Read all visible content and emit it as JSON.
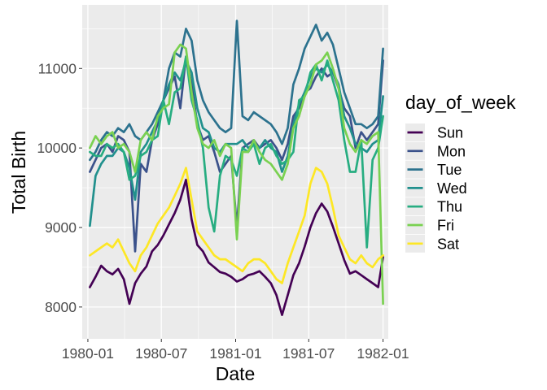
{
  "chart_data": {
    "type": "line",
    "xlabel": "Date",
    "ylabel": "Total Birth",
    "x_ticks": [
      "1980-01",
      "1980-07",
      "1981-01",
      "1981-07",
      "1982-01"
    ],
    "y_ticks": [
      "8000",
      "9000",
      "10000",
      "11000"
    ],
    "xlim": [
      "1979-12-18",
      "1982-01-14"
    ],
    "ylim": [
      7600,
      11800
    ],
    "grid": true,
    "legend": {
      "title": "day_of_week",
      "position": "right"
    },
    "dates": [
      "1980-01-06",
      "1980-01-20",
      "1980-02-03",
      "1980-02-17",
      "1980-03-02",
      "1980-03-16",
      "1980-03-30",
      "1980-04-13",
      "1980-04-27",
      "1980-05-11",
      "1980-05-25",
      "1980-06-08",
      "1980-06-22",
      "1980-07-06",
      "1980-07-20",
      "1980-08-03",
      "1980-08-17",
      "1980-08-31",
      "1980-09-14",
      "1980-09-28",
      "1980-10-12",
      "1980-10-26",
      "1980-11-09",
      "1980-11-23",
      "1980-12-07",
      "1980-12-21",
      "1981-01-04",
      "1981-01-18",
      "1981-02-01",
      "1981-02-15",
      "1981-03-01",
      "1981-03-15",
      "1981-03-29",
      "1981-04-12",
      "1981-04-26",
      "1981-05-10",
      "1981-05-24",
      "1981-06-07",
      "1981-06-21",
      "1981-07-05",
      "1981-07-19",
      "1981-08-02",
      "1981-08-16",
      "1981-08-30",
      "1981-09-13",
      "1981-09-27",
      "1981-10-11",
      "1981-10-25",
      "1981-11-08",
      "1981-11-22",
      "1981-12-06",
      "1981-12-20",
      "1982-01-01"
    ],
    "series": [
      {
        "name": "Sun",
        "color": "#440154",
        "values": [
          8250,
          8380,
          8520,
          8450,
          8410,
          8480,
          8350,
          8040,
          8300,
          8420,
          8510,
          8700,
          8780,
          8900,
          9040,
          9180,
          9350,
          9600,
          9100,
          8780,
          8700,
          8560,
          8500,
          8440,
          8420,
          8380,
          8320,
          8350,
          8400,
          8420,
          8450,
          8380,
          8300,
          8150,
          7900,
          8150,
          8400,
          8550,
          8760,
          9000,
          9180,
          9300,
          9200,
          9010,
          8800,
          8590,
          8420,
          8450,
          8400,
          8350,
          8300,
          8250,
          8630
        ]
      },
      {
        "name": "Mon",
        "color": "#3b528b",
        "values": [
          9700,
          9850,
          10000,
          10050,
          9950,
          10150,
          10100,
          9950,
          8700,
          9800,
          9700,
          10100,
          10300,
          10600,
          10750,
          10900,
          10500,
          11150,
          10800,
          10300,
          10100,
          10150,
          9950,
          9700,
          9800,
          9900,
          9000,
          10000,
          10050,
          10100,
          10000,
          10050,
          10100,
          10000,
          9850,
          10050,
          10400,
          10500,
          10700,
          10750,
          10900,
          11000,
          10900,
          10950,
          10750,
          10500,
          10400,
          10000,
          10200,
          10100,
          10200,
          10300,
          11100
        ]
      },
      {
        "name": "Tue",
        "color": "#2c728e",
        "values": [
          9850,
          9950,
          10100,
          10200,
          10150,
          10250,
          10200,
          10300,
          10150,
          10100,
          10200,
          10300,
          10450,
          10600,
          11000,
          11200,
          11150,
          11500,
          11350,
          10850,
          10600,
          10450,
          10350,
          10250,
          10200,
          10250,
          11600,
          10400,
          10350,
          10450,
          10400,
          10350,
          10300,
          10200,
          10050,
          10250,
          10800,
          11000,
          11250,
          11400,
          11550,
          11350,
          11450,
          11300,
          11000,
          10700,
          10500,
          10300,
          10300,
          10250,
          10300,
          10400,
          11250
        ]
      },
      {
        "name": "Wed",
        "color": "#21908d",
        "values": [
          9020,
          9650,
          9800,
          9900,
          9900,
          10000,
          9950,
          9750,
          9350,
          9950,
          10050,
          10200,
          10350,
          10600,
          10800,
          10950,
          10850,
          11100,
          10950,
          10500,
          10250,
          10200,
          10000,
          9950,
          10050,
          10050,
          10050,
          10100,
          10000,
          10050,
          10000,
          10100,
          10000,
          9950,
          9700,
          9900,
          10300,
          10550,
          10700,
          10900,
          11000,
          10950,
          11050,
          10950,
          10800,
          10400,
          10250,
          10050,
          10000,
          9950,
          10050,
          10100,
          10650
        ]
      },
      {
        "name": "Thu",
        "color": "#27ad81",
        "values": [
          9950,
          9900,
          9900,
          10050,
          10000,
          10050,
          9950,
          9600,
          9650,
          9900,
          9950,
          10100,
          10150,
          10600,
          10300,
          10700,
          10750,
          11150,
          10600,
          10350,
          10000,
          9250,
          8950,
          9650,
          9900,
          9850,
          9650,
          10000,
          9950,
          10050,
          9800,
          10000,
          10050,
          9900,
          9800,
          9850,
          9950,
          10600,
          10650,
          10950,
          11050,
          10850,
          11100,
          10850,
          10600,
          10100,
          9700,
          9700,
          10100,
          8750,
          9850,
          10000,
          10400
        ]
      },
      {
        "name": "Fri",
        "color": "#7ad151",
        "values": [
          10000,
          10150,
          10050,
          10150,
          10200,
          10000,
          10050,
          9950,
          9700,
          10100,
          10200,
          10100,
          10400,
          10500,
          10550,
          11200,
          11300,
          11250,
          10700,
          10250,
          10050,
          10000,
          10100,
          9900,
          10050,
          10000,
          8850,
          9950,
          9950,
          10100,
          9950,
          9850,
          9800,
          9700,
          9600,
          9800,
          10250,
          10400,
          10650,
          10800,
          11050,
          11100,
          11200,
          11000,
          10750,
          10250,
          10050,
          9950,
          10100,
          10050,
          10150,
          10200,
          8040
        ]
      },
      {
        "name": "Sat",
        "color": "#fde725",
        "values": [
          8650,
          8700,
          8750,
          8800,
          8750,
          8850,
          8700,
          8550,
          8450,
          8650,
          8750,
          8900,
          9050,
          9150,
          9250,
          9400,
          9550,
          9750,
          9350,
          8950,
          8850,
          8750,
          8650,
          8600,
          8600,
          8550,
          8500,
          8450,
          8550,
          8600,
          8600,
          8550,
          8450,
          8350,
          8300,
          8550,
          8750,
          8950,
          9150,
          9550,
          9750,
          9700,
          9550,
          9250,
          8900,
          8750,
          8600,
          8550,
          8650,
          8550,
          8500,
          8600,
          8650
        ]
      }
    ]
  }
}
